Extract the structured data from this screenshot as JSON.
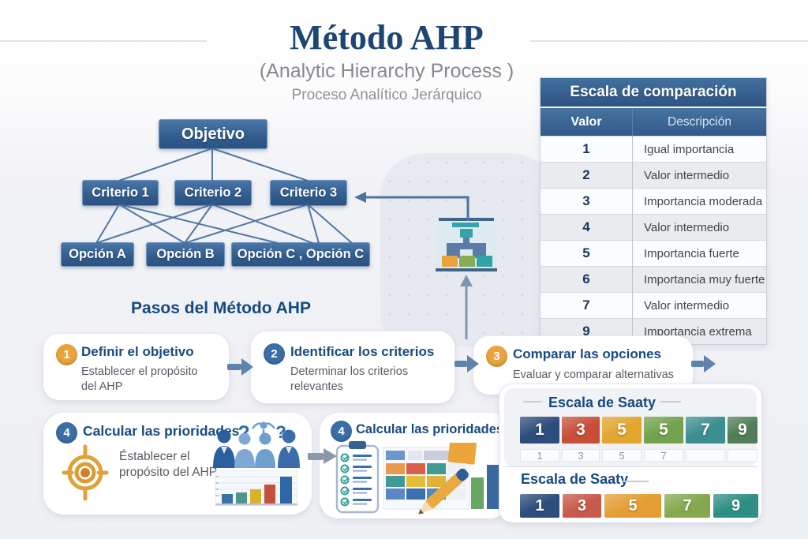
{
  "header": {
    "title": "Método AHP",
    "subtitle": "(Analytic Hierarchy Process )",
    "subtitle2": "Proceso Analítico Jerárquico"
  },
  "hierarchy": {
    "goal": "Objetivo",
    "criteria": [
      "Criterio 1",
      "Criterio 2",
      "Criterio 3"
    ],
    "options": [
      "Opción A",
      "Opción B",
      "Opción C , Opción C"
    ]
  },
  "comparison_table": {
    "title": "Escala de comparación",
    "columns": [
      "Valor",
      "Descripción"
    ],
    "rows": [
      {
        "valor": "1",
        "descripcion": "Igual importancia"
      },
      {
        "valor": "2",
        "descripcion": "Valor intermedio"
      },
      {
        "valor": "3",
        "descripcion": "Importancia moderada"
      },
      {
        "valor": "4",
        "descripcion": "Valor intermedio"
      },
      {
        "valor": "5",
        "descripcion": "Importancia fuerte"
      },
      {
        "valor": "6",
        "descripcion": "Importancia muy fuerte"
      },
      {
        "valor": "7",
        "descripcion": "Valor intermedio"
      },
      {
        "valor": "9",
        "descripcion": "Importancia extrema"
      }
    ]
  },
  "steps": {
    "heading": "Pasos del Método AHP",
    "items": [
      {
        "number": "1",
        "circle_color": "#e8a33c",
        "title": "Definir el objetivo",
        "description": "Establecer el propósito del AHP"
      },
      {
        "number": "2",
        "circle_color": "#3a6ea5",
        "title": "Identificar los criterios",
        "description": "Determinar los criterios relevantes"
      },
      {
        "number": "3",
        "circle_color": "#e8a33c",
        "title": "Comparar las opciones",
        "description": "Evaluar y comparar alternativas"
      },
      {
        "number": "4",
        "circle_color": "#3a6ea5",
        "title": "Calcular las prioridades",
        "description": "Éstablecer el propósito del AHP"
      },
      {
        "number": "4",
        "circle_color": "#3a6ea5",
        "title": "Calcular las prioridades",
        "description": ""
      }
    ]
  },
  "saaty": {
    "title1": "Escala de Saaty",
    "title2": "Escala de Saaty",
    "row1": [
      {
        "value": "1",
        "color": "#2d4d7c"
      },
      {
        "value": "3",
        "color": "#c74f3a"
      },
      {
        "value": "5",
        "color": "#e2a52f"
      },
      {
        "value": "5",
        "color": "#73a24c"
      },
      {
        "value": "7",
        "color": "#3c8e91"
      },
      {
        "value": "9",
        "color": "#517e59"
      }
    ],
    "subrow": [
      "1",
      "3",
      "5",
      "7",
      "",
      ""
    ],
    "row2": [
      {
        "value": "1",
        "color": "#2d4d7c"
      },
      {
        "value": "3",
        "color": "#c75a4a"
      },
      {
        "value": "5",
        "color": "#e39d33"
      },
      {
        "value": "7",
        "color": "#86a94e"
      },
      {
        "value": "9",
        "color": "#2e8e85"
      }
    ]
  },
  "palette": {
    "title_navy": "#1d4672",
    "box_blue": "#335e90",
    "accent_orange": "#e8a33c",
    "accent_blue": "#3a6ea5",
    "bg_gray": "#eef0f4"
  }
}
